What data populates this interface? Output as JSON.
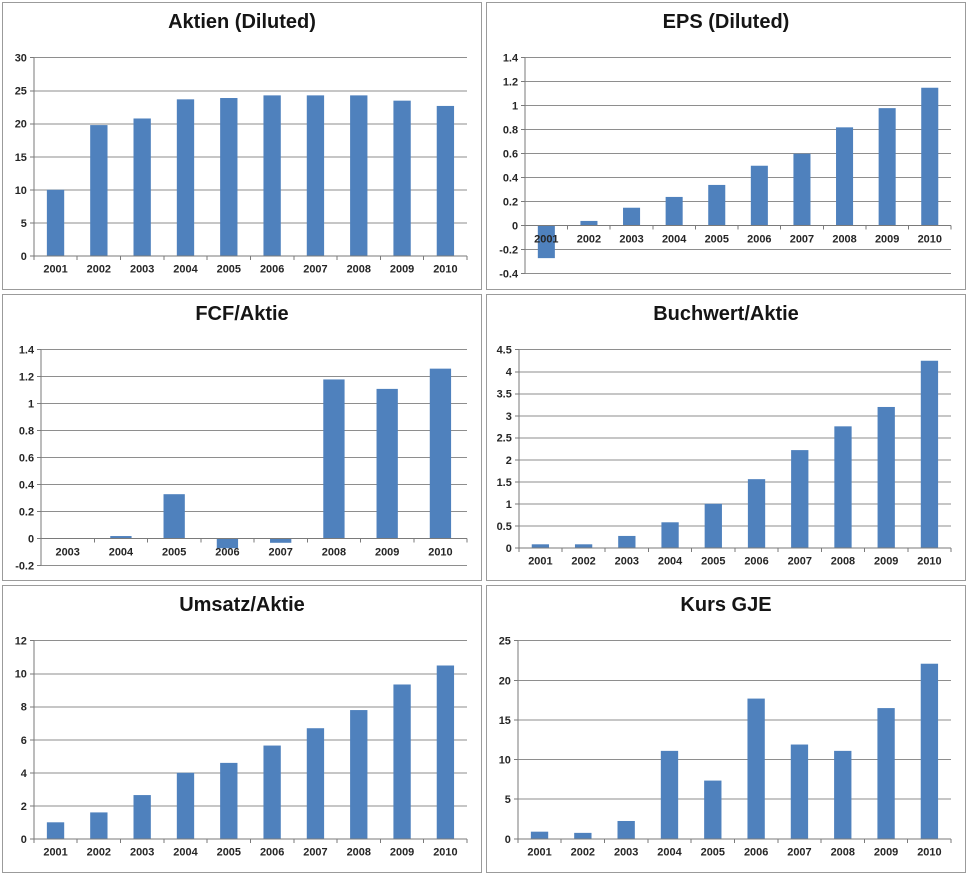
{
  "page": {
    "background_color": "#ffffff",
    "panel_border_color": "#9b9b9b"
  },
  "chart_defaults": {
    "bar_color": "#4f81bd",
    "gridline_color": "#8e8e8e",
    "axis_color": "#7a7a7a",
    "tick_label_color": "#262626",
    "title_color": "#151515",
    "grid": true,
    "legend": "none",
    "bar_gap": "150%"
  },
  "chart_data": [
    {
      "type": "bar",
      "title": "Aktien (Diluted)",
      "categories": [
        "2001",
        "2002",
        "2003",
        "2004",
        "2005",
        "2006",
        "2007",
        "2008",
        "2009",
        "2010"
      ],
      "values": [
        10,
        19.8,
        20.8,
        23.7,
        23.9,
        24.3,
        24.3,
        24.3,
        23.5,
        22.7
      ],
      "xlabel": "",
      "ylabel": "",
      "ylim": [
        0,
        30
      ],
      "ystep": 5,
      "yticks": [
        "30",
        "25",
        "20",
        "15",
        "10",
        "5",
        "0"
      ]
    },
    {
      "type": "bar",
      "title": "EPS (Diluted)",
      "categories": [
        "2001",
        "2002",
        "2003",
        "2004",
        "2005",
        "2006",
        "2007",
        "2008",
        "2009",
        "2010"
      ],
      "values": [
        -0.27,
        0.04,
        0.15,
        0.24,
        0.34,
        0.5,
        0.6,
        0.82,
        0.98,
        1.15
      ],
      "xlabel": "",
      "ylabel": "",
      "ylim": [
        -0.4,
        1.4
      ],
      "ystep": 0.2,
      "yticks": [
        "1.4",
        "1.2",
        "1",
        "0.8",
        "0.6",
        "0.4",
        "0.2",
        "0",
        "-0.2",
        "-0.4"
      ]
    },
    {
      "type": "bar",
      "title": "FCF/Aktie",
      "categories": [
        "2003",
        "2004",
        "2005",
        "2006",
        "2007",
        "2008",
        "2009",
        "2010"
      ],
      "values": [
        0,
        0.02,
        0.33,
        -0.07,
        -0.03,
        1.18,
        1.11,
        1.26
      ],
      "xlabel": "",
      "ylabel": "",
      "ylim": [
        -0.2,
        1.4
      ],
      "ystep": 0.2,
      "yticks": [
        "1.4",
        "1.2",
        "1",
        "0.8",
        "0.6",
        "0.4",
        "0.2",
        "0",
        "-0.2"
      ]
    },
    {
      "type": "bar",
      "title": "Buchwert/Aktie",
      "categories": [
        "2001",
        "2002",
        "2003",
        "2004",
        "2005",
        "2006",
        "2007",
        "2008",
        "2009",
        "2010"
      ],
      "values": [
        0.08,
        0.08,
        0.27,
        0.58,
        1.0,
        1.56,
        2.22,
        2.76,
        3.2,
        4.25
      ],
      "xlabel": "",
      "ylabel": "",
      "ylim": [
        0,
        4.5
      ],
      "ystep": 0.5,
      "yticks": [
        "4.5",
        "4",
        "3.5",
        "3",
        "2.5",
        "2",
        "1.5",
        "1",
        "0.5",
        "0"
      ]
    },
    {
      "type": "bar",
      "title": "Umsatz/Aktie",
      "categories": [
        "2001",
        "2002",
        "2003",
        "2004",
        "2005",
        "2006",
        "2007",
        "2008",
        "2009",
        "2010"
      ],
      "values": [
        1.0,
        1.6,
        2.65,
        4.0,
        4.6,
        5.65,
        6.7,
        7.8,
        9.35,
        10.5
      ],
      "xlabel": "",
      "ylabel": "",
      "ylim": [
        0,
        12
      ],
      "ystep": 2,
      "yticks": [
        "12",
        "10",
        "8",
        "6",
        "4",
        "2",
        "0"
      ]
    },
    {
      "type": "bar",
      "title": "Kurs GJE",
      "categories": [
        "2001",
        "2002",
        "2003",
        "2004",
        "2005",
        "2006",
        "2007",
        "2008",
        "2009",
        "2010"
      ],
      "values": [
        0.9,
        0.75,
        2.25,
        11.1,
        7.35,
        17.7,
        11.9,
        11.1,
        16.5,
        22.1
      ],
      "xlabel": "",
      "ylabel": "",
      "ylim": [
        0,
        25
      ],
      "ystep": 5,
      "yticks": [
        "25",
        "20",
        "15",
        "10",
        "5",
        "0"
      ]
    }
  ]
}
